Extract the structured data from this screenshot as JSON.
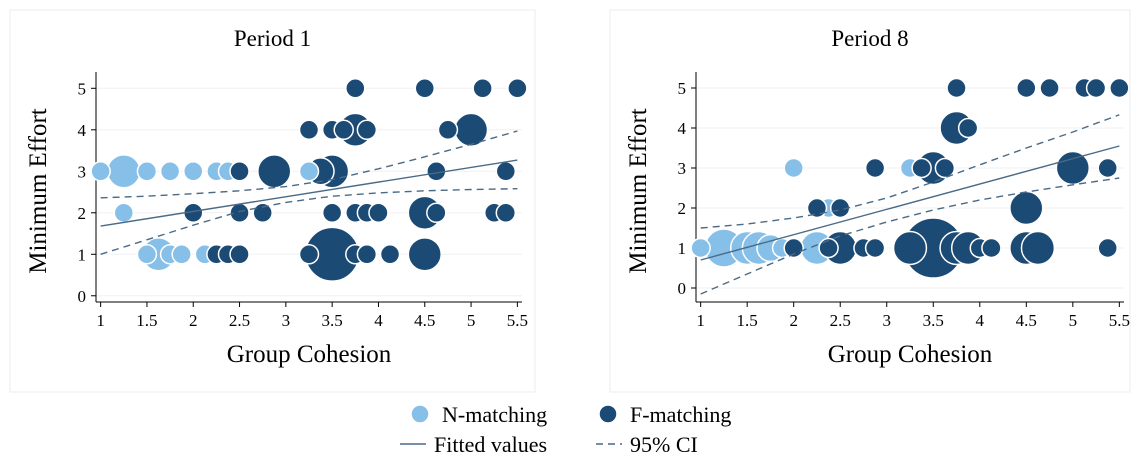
{
  "colors": {
    "n_matching": "#86bfe8",
    "f_matching": "#1b4a74",
    "fit_line": "#4a6a86",
    "ci_line": "#4a6a86",
    "marker_edge": "#ffffff"
  },
  "legend": {
    "items": [
      {
        "label": "N-matching",
        "kind": "marker",
        "color_key": "n_matching"
      },
      {
        "label": "F-matching",
        "kind": "marker",
        "color_key": "f_matching"
      },
      {
        "label": "Fitted values",
        "kind": "solid"
      },
      {
        "label": "95% CI",
        "kind": "dashed"
      }
    ]
  },
  "chart_data": [
    {
      "type": "scatter",
      "title": "Period 1",
      "xlabel": "Group Cohesion",
      "ylabel": "Minimum Effort",
      "xlim": [
        0.95,
        5.55
      ],
      "ylim": [
        -0.15,
        5.2
      ],
      "xticks": [
        1,
        1.5,
        2,
        2.5,
        3,
        3.5,
        4,
        4.5,
        5,
        5.5
      ],
      "xtick_labels": [
        "1",
        "1.5",
        "2",
        "2.5",
        "3",
        "3.5",
        "4",
        "4.5",
        "5",
        "5.5"
      ],
      "yticks": [
        0,
        1,
        2,
        3,
        4,
        5
      ],
      "ytick_labels": [
        "0",
        "1",
        "2",
        "3",
        "4",
        "5"
      ],
      "grid": true,
      "series": [
        {
          "name": "N-matching",
          "points": [
            {
              "x": 1.0,
              "y": 3,
              "n": 1
            },
            {
              "x": 1.25,
              "y": 3,
              "n": 3
            },
            {
              "x": 1.5,
              "y": 3,
              "n": 1
            },
            {
              "x": 1.75,
              "y": 3,
              "n": 1
            },
            {
              "x": 2.0,
              "y": 3,
              "n": 1
            },
            {
              "x": 2.25,
              "y": 3,
              "n": 1
            },
            {
              "x": 2.375,
              "y": 3,
              "n": 1
            },
            {
              "x": 3.25,
              "y": 3,
              "n": 1
            },
            {
              "x": 1.25,
              "y": 2,
              "n": 1
            },
            {
              "x": 1.5,
              "y": 1,
              "n": 1
            },
            {
              "x": 1.625,
              "y": 1,
              "n": 3
            },
            {
              "x": 1.75,
              "y": 1,
              "n": 1
            },
            {
              "x": 1.875,
              "y": 1,
              "n": 1
            },
            {
              "x": 2.125,
              "y": 1,
              "n": 1
            }
          ]
        },
        {
          "name": "F-matching",
          "points": [
            {
              "x": 3.75,
              "y": 5,
              "n": 1
            },
            {
              "x": 4.5,
              "y": 5,
              "n": 1
            },
            {
              "x": 5.125,
              "y": 5,
              "n": 1
            },
            {
              "x": 5.5,
              "y": 5,
              "n": 1
            },
            {
              "x": 3.25,
              "y": 4,
              "n": 1
            },
            {
              "x": 3.5,
              "y": 4,
              "n": 1
            },
            {
              "x": 3.625,
              "y": 4,
              "n": 1
            },
            {
              "x": 3.75,
              "y": 4,
              "n": 3
            },
            {
              "x": 3.875,
              "y": 4,
              "n": 1
            },
            {
              "x": 4.75,
              "y": 4,
              "n": 1
            },
            {
              "x": 5.0,
              "y": 4,
              "n": 3
            },
            {
              "x": 2.5,
              "y": 3,
              "n": 1
            },
            {
              "x": 2.875,
              "y": 3,
              "n": 3
            },
            {
              "x": 3.375,
              "y": 3,
              "n": 2
            },
            {
              "x": 3.5,
              "y": 3,
              "n": 3
            },
            {
              "x": 4.625,
              "y": 3,
              "n": 1
            },
            {
              "x": 5.375,
              "y": 3,
              "n": 1
            },
            {
              "x": 2.0,
              "y": 2,
              "n": 1
            },
            {
              "x": 2.5,
              "y": 2,
              "n": 1
            },
            {
              "x": 2.75,
              "y": 2,
              "n": 1
            },
            {
              "x": 3.5,
              "y": 2,
              "n": 1
            },
            {
              "x": 3.75,
              "y": 2,
              "n": 1
            },
            {
              "x": 3.875,
              "y": 2,
              "n": 1
            },
            {
              "x": 4.0,
              "y": 2,
              "n": 1
            },
            {
              "x": 4.5,
              "y": 2,
              "n": 3
            },
            {
              "x": 4.625,
              "y": 2,
              "n": 1
            },
            {
              "x": 5.25,
              "y": 2,
              "n": 1
            },
            {
              "x": 5.375,
              "y": 2,
              "n": 1
            },
            {
              "x": 2.25,
              "y": 1,
              "n": 1
            },
            {
              "x": 2.375,
              "y": 1,
              "n": 1
            },
            {
              "x": 2.5,
              "y": 1,
              "n": 1
            },
            {
              "x": 3.25,
              "y": 1,
              "n": 1
            },
            {
              "x": 3.5,
              "y": 1,
              "n": 8
            },
            {
              "x": 3.75,
              "y": 1,
              "n": 1
            },
            {
              "x": 3.875,
              "y": 1,
              "n": 1
            },
            {
              "x": 4.125,
              "y": 1,
              "n": 1
            },
            {
              "x": 4.5,
              "y": 1,
              "n": 3
            }
          ]
        }
      ],
      "fitted_values": {
        "x": [
          1.0,
          5.5
        ],
        "y": [
          1.68,
          3.27
        ]
      },
      "ci_upper": {
        "x": [
          1.0,
          1.5,
          2.0,
          2.5,
          3.0,
          3.5,
          4.0,
          4.5,
          5.0,
          5.5
        ],
        "y": [
          2.36,
          2.4,
          2.46,
          2.53,
          2.63,
          2.8,
          3.06,
          3.35,
          3.65,
          3.97
        ]
      },
      "ci_lower": {
        "x": [
          1.0,
          1.5,
          2.0,
          2.5,
          3.0,
          3.5,
          4.0,
          4.5,
          5.0,
          5.5
        ],
        "y": [
          1.0,
          1.35,
          1.7,
          2.03,
          2.25,
          2.4,
          2.48,
          2.53,
          2.56,
          2.58
        ]
      }
    },
    {
      "type": "scatter",
      "title": "Period 8",
      "xlabel": "Group Cohesion",
      "ylabel": "Minimum Effort",
      "xlim": [
        0.95,
        5.55
      ],
      "ylim": [
        -0.35,
        5.2
      ],
      "xticks": [
        1,
        1.5,
        2,
        2.5,
        3,
        3.5,
        4,
        4.5,
        5,
        5.5
      ],
      "xtick_labels": [
        "1",
        "1.5",
        "2",
        "2.5",
        "3",
        "3.5",
        "4",
        "4.5",
        "5",
        "5.5"
      ],
      "yticks": [
        0,
        1,
        2,
        3,
        4,
        5
      ],
      "ytick_labels": [
        "0",
        "1",
        "2",
        "3",
        "4",
        "5"
      ],
      "grid": true,
      "series": [
        {
          "name": "N-matching",
          "points": [
            {
              "x": 1.0,
              "y": 1,
              "n": 1
            },
            {
              "x": 1.25,
              "y": 1,
              "n": 4
            },
            {
              "x": 1.5,
              "y": 1,
              "n": 3
            },
            {
              "x": 1.625,
              "y": 1,
              "n": 3
            },
            {
              "x": 1.75,
              "y": 1,
              "n": 2
            },
            {
              "x": 1.875,
              "y": 1,
              "n": 1
            },
            {
              "x": 2.25,
              "y": 1,
              "n": 3
            },
            {
              "x": 2.0,
              "y": 3,
              "n": 1
            },
            {
              "x": 2.375,
              "y": 2,
              "n": 1
            },
            {
              "x": 3.25,
              "y": 3,
              "n": 1
            }
          ]
        },
        {
          "name": "F-matching",
          "points": [
            {
              "x": 3.75,
              "y": 5,
              "n": 1
            },
            {
              "x": 4.5,
              "y": 5,
              "n": 1
            },
            {
              "x": 4.75,
              "y": 5,
              "n": 1
            },
            {
              "x": 5.125,
              "y": 5,
              "n": 1
            },
            {
              "x": 5.25,
              "y": 5,
              "n": 1
            },
            {
              "x": 5.5,
              "y": 5,
              "n": 1
            },
            {
              "x": 3.75,
              "y": 4,
              "n": 3
            },
            {
              "x": 3.875,
              "y": 4,
              "n": 1
            },
            {
              "x": 2.875,
              "y": 3,
              "n": 1
            },
            {
              "x": 3.375,
              "y": 3,
              "n": 1
            },
            {
              "x": 3.5,
              "y": 3,
              "n": 3
            },
            {
              "x": 3.625,
              "y": 3,
              "n": 1
            },
            {
              "x": 5.0,
              "y": 3,
              "n": 3
            },
            {
              "x": 5.375,
              "y": 3,
              "n": 1
            },
            {
              "x": 2.25,
              "y": 2,
              "n": 1
            },
            {
              "x": 2.5,
              "y": 2,
              "n": 1
            },
            {
              "x": 4.5,
              "y": 2,
              "n": 3
            },
            {
              "x": 2.0,
              "y": 1,
              "n": 1
            },
            {
              "x": 2.375,
              "y": 1,
              "n": 1
            },
            {
              "x": 2.5,
              "y": 1,
              "n": 3
            },
            {
              "x": 2.75,
              "y": 1,
              "n": 1
            },
            {
              "x": 2.875,
              "y": 1,
              "n": 1
            },
            {
              "x": 3.25,
              "y": 1,
              "n": 3
            },
            {
              "x": 3.5,
              "y": 1,
              "n": 10
            },
            {
              "x": 3.75,
              "y": 1,
              "n": 3
            },
            {
              "x": 3.875,
              "y": 1,
              "n": 3
            },
            {
              "x": 4.0,
              "y": 1,
              "n": 1
            },
            {
              "x": 4.125,
              "y": 1,
              "n": 1
            },
            {
              "x": 4.5,
              "y": 1,
              "n": 3
            },
            {
              "x": 4.625,
              "y": 1,
              "n": 3
            },
            {
              "x": 5.375,
              "y": 1,
              "n": 1
            }
          ]
        }
      ],
      "fitted_values": {
        "x": [
          1.0,
          5.5
        ],
        "y": [
          0.7,
          3.55
        ]
      },
      "ci_upper": {
        "x": [
          1.0,
          1.5,
          2.0,
          2.5,
          3.0,
          3.5,
          4.0,
          4.5,
          5.0,
          5.5
        ],
        "y": [
          1.5,
          1.6,
          1.75,
          1.95,
          2.25,
          2.65,
          3.08,
          3.5,
          3.9,
          4.33
        ]
      },
      "ci_lower": {
        "x": [
          1.0,
          1.5,
          2.0,
          2.5,
          3.0,
          3.5,
          4.0,
          4.5,
          5.0,
          5.5
        ],
        "y": [
          -0.15,
          0.35,
          0.85,
          1.3,
          1.65,
          1.95,
          2.2,
          2.4,
          2.58,
          2.75
        ]
      }
    }
  ]
}
